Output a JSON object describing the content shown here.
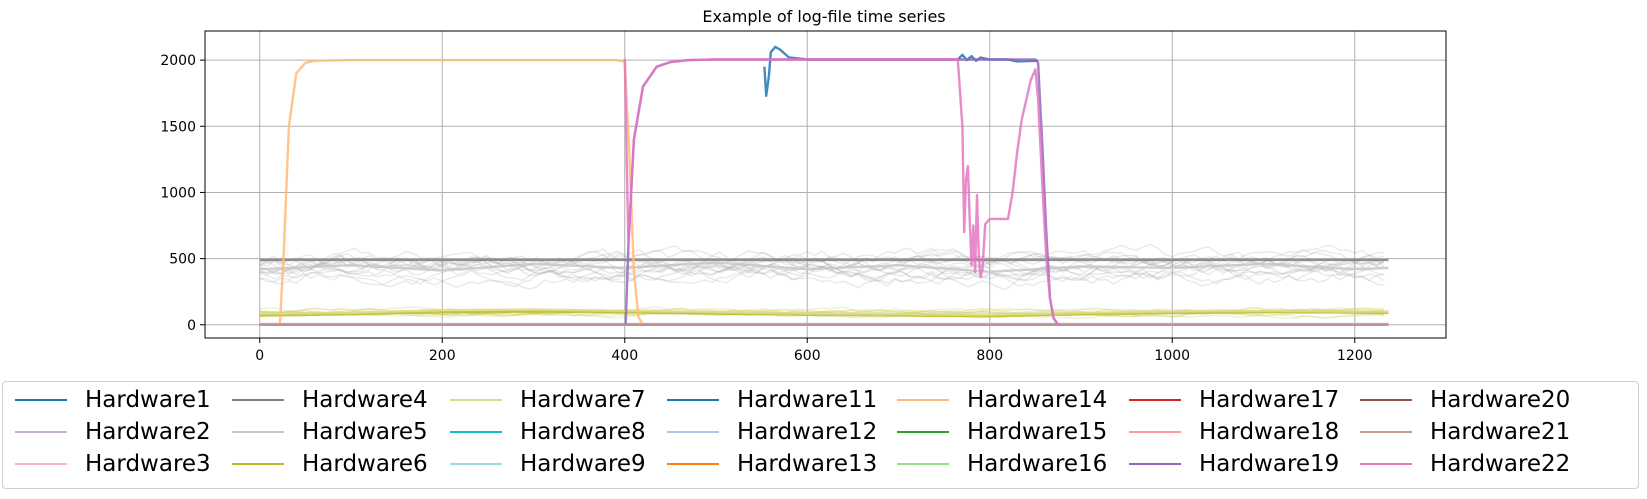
{
  "chart_data": {
    "type": "line",
    "title": "Example of log-file time series",
    "xlabel": "",
    "ylabel": "",
    "xlim": [
      -60,
      1300
    ],
    "ylim": [
      -100,
      2220
    ],
    "xticks": [
      0,
      200,
      400,
      600,
      800,
      1000,
      1200
    ],
    "yticks": [
      0,
      500,
      1000,
      1500,
      2000
    ],
    "grid": true,
    "legend_placement": "below plot, 7 columns",
    "series": [
      {
        "name": "Hardware1",
        "color": "#1f77b4",
        "x": [
          0,
          1237
        ],
        "values": [
          0,
          0
        ]
      },
      {
        "name": "Hardware2",
        "color": "#c5b0d5",
        "x": [
          0,
          1237
        ],
        "values": [
          0,
          0
        ]
      },
      {
        "name": "Hardware3",
        "color": "#f7b6d2",
        "x": [
          0,
          1237
        ],
        "values": [
          0,
          0
        ]
      },
      {
        "name": "Hardware4",
        "color": "#7f7f7f",
        "x": [
          0,
          1237
        ],
        "values": [
          490,
          490
        ]
      },
      {
        "name": "Hardware5",
        "color": "#c7c7c7",
        "x": [
          0,
          100,
          200,
          300,
          400,
          500,
          600,
          700,
          800,
          900,
          1000,
          1100,
          1200,
          1237
        ],
        "values": [
          420,
          450,
          410,
          460,
          430,
          470,
          420,
          450,
          400,
          440,
          430,
          460,
          420,
          430
        ]
      },
      {
        "name": "Hardware6",
        "color": "#bcbd22",
        "x": [
          0,
          100,
          200,
          300,
          400,
          500,
          600,
          700,
          800,
          900,
          1000,
          1100,
          1200,
          1237
        ],
        "values": [
          70,
          80,
          95,
          100,
          95,
          85,
          75,
          70,
          65,
          80,
          90,
          95,
          92,
          90
        ]
      },
      {
        "name": "Hardware7",
        "color": "#dbdb8d",
        "x": [
          0,
          100,
          200,
          300,
          400,
          500,
          600,
          700,
          800,
          900,
          1000,
          1100,
          1200,
          1237
        ],
        "values": [
          85,
          90,
          110,
          115,
          105,
          95,
          85,
          80,
          75,
          90,
          100,
          105,
          100,
          100
        ]
      },
      {
        "name": "Hardware8",
        "color": "#17becf",
        "x": [
          0,
          1237
        ],
        "values": [
          2,
          2
        ]
      },
      {
        "name": "Hardware9",
        "color": "#9edae5",
        "x": [
          0,
          1237
        ],
        "values": [
          4,
          4
        ]
      },
      {
        "name": "Hardware11",
        "color": "#1f77b4",
        "x": [
          553,
          555,
          558,
          560,
          565,
          570,
          580,
          600,
          700,
          765,
          770,
          775,
          780,
          785,
          790,
          800,
          820,
          830,
          850,
          853
        ],
        "values": [
          1950,
          1730,
          1880,
          2060,
          2100,
          2080,
          2020,
          2005,
          2005,
          2005,
          2040,
          2000,
          2030,
          1995,
          2020,
          2005,
          2005,
          1990,
          1995,
          1995
        ]
      },
      {
        "name": "Hardware12",
        "color": "#aec7e8",
        "x": [
          0,
          1237
        ],
        "values": [
          6,
          6
        ]
      },
      {
        "name": "Hardware13",
        "color": "#ff7f0e",
        "x": [
          0,
          1237
        ],
        "values": [
          0,
          0
        ]
      },
      {
        "name": "Hardware14",
        "color": "#ffbb78",
        "x": [
          0,
          22,
          26,
          32,
          40,
          50,
          60,
          100,
          200,
          300,
          390,
          400,
          405,
          410,
          415,
          420
        ],
        "values": [
          0,
          0,
          500,
          1500,
          1900,
          1980,
          1995,
          2000,
          2000,
          2000,
          2000,
          1990,
          1300,
          400,
          60,
          0
        ]
      },
      {
        "name": "Hardware15",
        "color": "#2ca02c",
        "x": [
          0,
          1237
        ],
        "values": [
          0,
          0
        ]
      },
      {
        "name": "Hardware16",
        "color": "#98df8a",
        "x": [
          0,
          1237
        ],
        "values": [
          0,
          0
        ]
      },
      {
        "name": "Hardware17",
        "color": "#d62728",
        "x": [
          0,
          1237
        ],
        "values": [
          0,
          0
        ]
      },
      {
        "name": "Hardware18",
        "color": "#ff9896",
        "x": [
          0,
          1237
        ],
        "values": [
          0,
          0
        ]
      },
      {
        "name": "Hardware19",
        "color": "#9467bd",
        "x": [
          401,
          404,
          410,
          420,
          435,
          450,
          470,
          500,
          700,
          850,
          853,
          858,
          862,
          866,
          870,
          875
        ],
        "values": [
          0,
          600,
          1400,
          1800,
          1950,
          1985,
          2000,
          2005,
          2005,
          2005,
          1980,
          1300,
          700,
          200,
          50,
          0
        ]
      },
      {
        "name": "Hardware20",
        "color": "#8c564b",
        "x": [
          0,
          1237
        ],
        "values": [
          0,
          0
        ]
      },
      {
        "name": "Hardware21",
        "color": "#c49c94",
        "x": [
          0,
          1237
        ],
        "values": [
          0,
          0
        ]
      },
      {
        "name": "Hardware22",
        "color": "#e377c2",
        "x": [
          400,
          404,
          410,
          420,
          435,
          450,
          470,
          500,
          700,
          765,
          770,
          772,
          774,
          776,
          778,
          780,
          782,
          784,
          786,
          788,
          790,
          792,
          795,
          800,
          808,
          820,
          825,
          830,
          835,
          840,
          845,
          850,
          853,
          858,
          862,
          866,
          870,
          875
        ],
        "values": [
          2010,
          600,
          1400,
          1800,
          1950,
          1985,
          2000,
          2005,
          2005,
          2005,
          1500,
          700,
          1100,
          1200,
          800,
          450,
          750,
          400,
          980,
          520,
          360,
          420,
          760,
          800,
          800,
          800,
          1000,
          1300,
          1550,
          1700,
          1850,
          1930,
          1700,
          1000,
          500,
          200,
          50,
          0
        ]
      }
    ]
  }
}
